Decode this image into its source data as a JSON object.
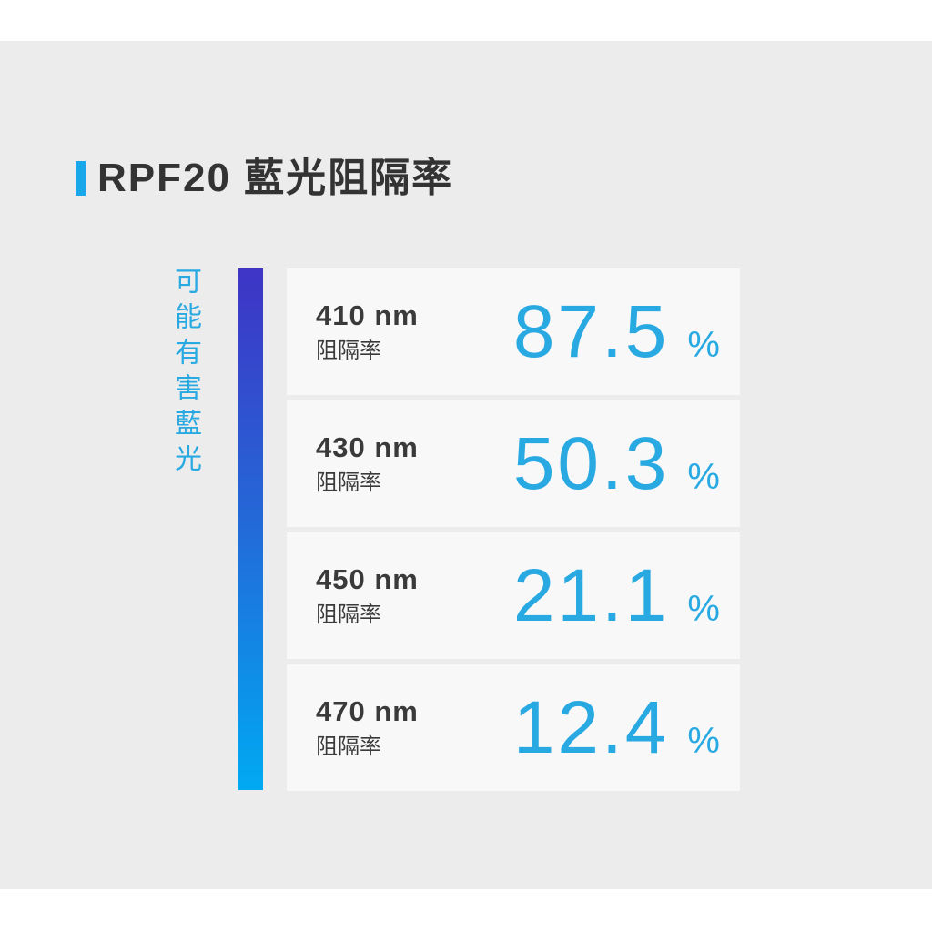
{
  "header": {
    "title": "RPF20 藍光阻隔率"
  },
  "side": {
    "label": "可能有害藍光"
  },
  "colors": {
    "accent": "#18a7e8",
    "cyan": "#29a9e2",
    "gradient_top": "#3e34c5",
    "gradient_mid": "#2468d8",
    "gradient_bottom": "#00a9f2",
    "panel_background": "#ececec",
    "card_background": "#f8f8f9",
    "title_text": "#333333",
    "label_text": "#3a3a3a"
  },
  "chart_data": {
    "type": "table",
    "title": "RPF20 藍光阻隔率",
    "categories": [
      "410 nm",
      "430 nm",
      "450 nm",
      "470 nm"
    ],
    "values": [
      87.5,
      50.3,
      21.1,
      12.4
    ],
    "unit": "%",
    "metric_label": "阻隔率",
    "axis_label": "可能有害藍光",
    "legend_position": "none",
    "notes": "vertical gradient bar (indigo to cyan) indicates possibly harmful blue light range"
  },
  "cards": [
    {
      "wavelength": "410 nm",
      "metric_label": "阻隔率",
      "value": "87.5",
      "unit": "%"
    },
    {
      "wavelength": "430 nm",
      "metric_label": "阻隔率",
      "value": "50.3",
      "unit": "%"
    },
    {
      "wavelength": "450 nm",
      "metric_label": "阻隔率",
      "value": "21.1",
      "unit": "%"
    },
    {
      "wavelength": "470 nm",
      "metric_label": "阻隔率",
      "value": "12.4",
      "unit": "%"
    }
  ]
}
